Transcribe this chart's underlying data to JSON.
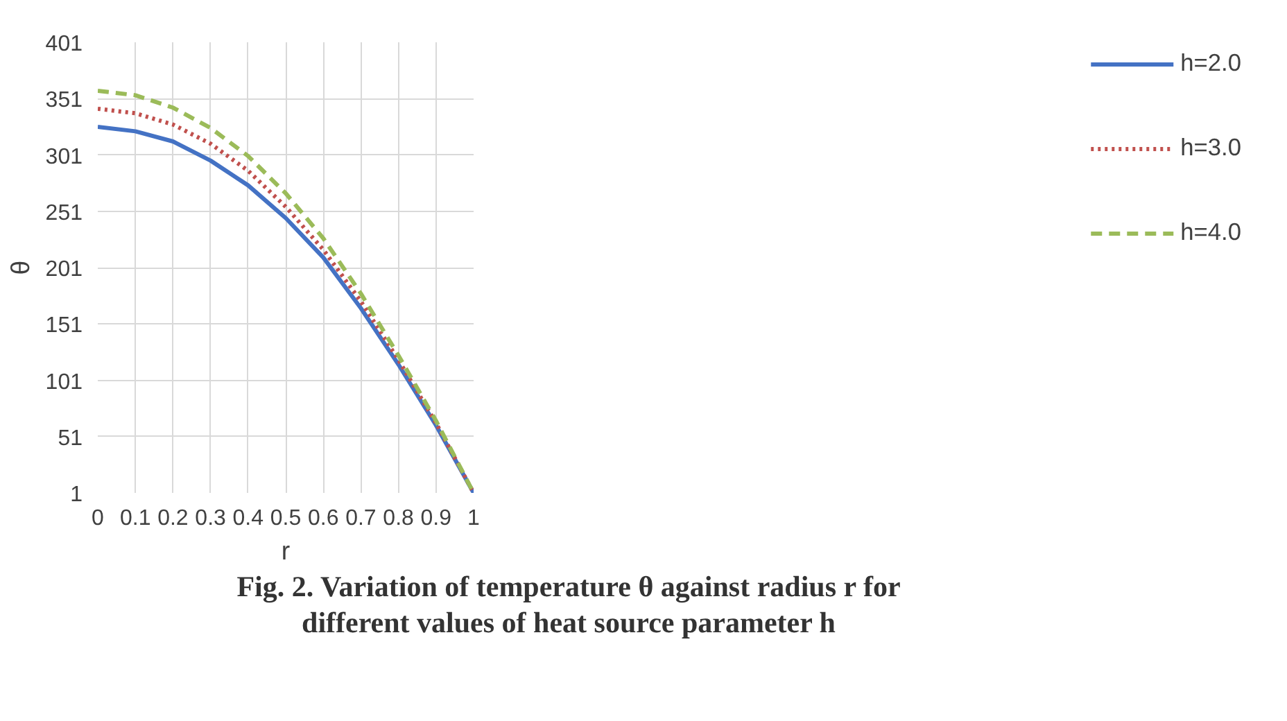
{
  "chart_data": {
    "type": "line",
    "title": "Fig. 2. Variation of temperature θ against radius r for different values of heat source parameter h",
    "xlabel": "r",
    "ylabel": "θ",
    "x": [
      0,
      0.1,
      0.2,
      0.3,
      0.4,
      0.5,
      0.6,
      0.7,
      0.8,
      0.9,
      1
    ],
    "series": [
      {
        "name": "h=2.0",
        "color": "#4472c4",
        "line_style": "solid",
        "values": [
          326,
          322,
          313,
          296,
          274,
          245,
          210,
          165,
          115,
          61,
          1
        ]
      },
      {
        "name": "h=3.0",
        "color": "#c0504d",
        "line_style": "dotted",
        "values": [
          342,
          338,
          328,
          311,
          287,
          255,
          217,
          171,
          119,
          63,
          1
        ]
      },
      {
        "name": "h=4.0",
        "color": "#9bbb59",
        "line_style": "dashed",
        "values": [
          358,
          354,
          343,
          325,
          300,
          267,
          227,
          178,
          123,
          65,
          1
        ]
      }
    ],
    "xlim": [
      0,
      1
    ],
    "xticks": [
      0,
      0.1,
      0.2,
      0.3,
      0.4,
      0.5,
      0.6,
      0.7,
      0.8,
      0.9,
      1
    ],
    "ylim": [
      1,
      401
    ],
    "yticks": [
      1,
      51,
      101,
      151,
      201,
      251,
      301,
      351,
      401
    ],
    "grid": true,
    "legend": "right",
    "marker": "none"
  }
}
